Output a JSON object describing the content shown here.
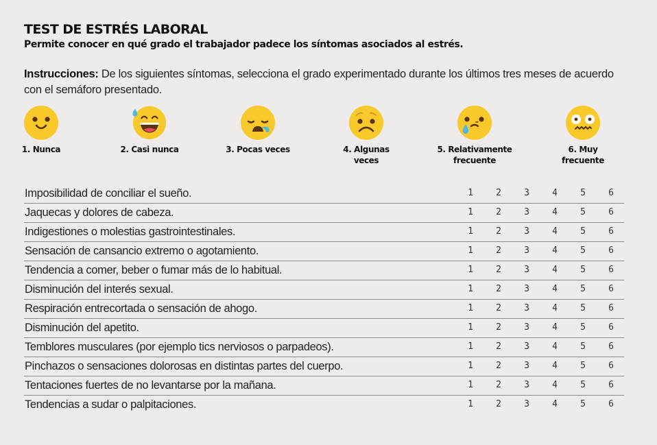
{
  "header": {
    "title": "TEST DE ESTRÉS LABORAL",
    "subtitle": "Permite conocer en qué grado el trabajador padece los síntomas asociados al estrés."
  },
  "instructions": {
    "label": "Instrucciones:",
    "text": " De los siguientes síntomas, selecciona el grado experimentado durante los últimos tres meses de acuerdo con el semáforo presentado."
  },
  "scale": [
    {
      "label": "1. Nunca",
      "icon": "smiling-face-icon"
    },
    {
      "label": "2. Casi nunca",
      "icon": "grinning-sweat-face-icon"
    },
    {
      "label": "3. Pocas veces",
      "icon": "sleepy-face-icon"
    },
    {
      "label": "4. Algunas veces",
      "icon": "worried-face-icon"
    },
    {
      "label": "5. Relativamente frecuente",
      "icon": "crying-face-icon"
    },
    {
      "label": "6. Muy frecuente",
      "icon": "anxious-face-icon"
    }
  ],
  "colors": {
    "face": "#f8c92a",
    "face_shade": "#f0b61d",
    "features": "#5a3210",
    "tear": "#4fb8e8",
    "mouth": "#e8495a"
  },
  "options": [
    "1",
    "2",
    "3",
    "4",
    "5",
    "6"
  ],
  "symptoms": [
    "Imposibilidad de conciliar el sueño.",
    "Jaquecas y dolores de cabeza.",
    "Indigestiones o molestias gastrointestinales.",
    "Sensación de cansancio extremo o agotamiento.",
    "Tendencia a comer, beber o fumar más de lo habitual.",
    "Disminución del interés sexual.",
    "Respiración entrecortada o sensación de ahogo.",
    "Disminución del apetito.",
    "Temblores musculares (por ejemplo tics nerviosos o parpadeos).",
    "Pinchazos o sensaciones dolorosas en distintas partes del cuerpo.",
    "Tentaciones fuertes de no levantarse por la mañana.",
    "Tendencias a sudar o palpitaciones."
  ]
}
